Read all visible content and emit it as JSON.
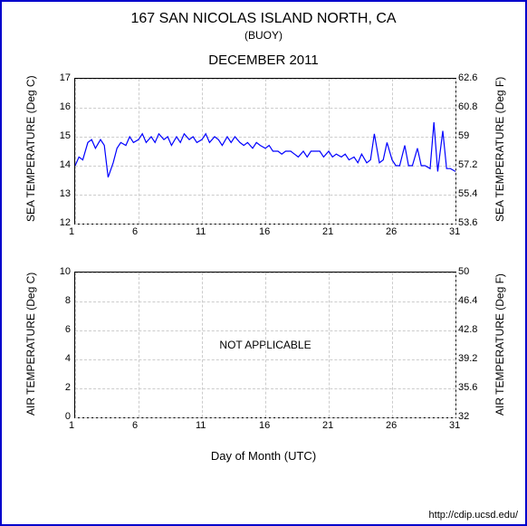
{
  "header": {
    "title": "167 SAN NICOLAS ISLAND NORTH, CA",
    "subtitle": "(BUOY)",
    "period": "DECEMBER 2011"
  },
  "layout": {
    "frame_border_color": "#0000cc",
    "background_color": "#ffffff",
    "grid_color": "#cccccc",
    "axis_color": "#000000"
  },
  "sea_chart": {
    "type": "line",
    "line_color": "#0000ff",
    "line_width": 1.2,
    "ylabel_left": "SEA TEMPERATURE (Deg C)",
    "ylabel_right": "SEA TEMPERATURE (Deg F)",
    "ylim_c": [
      12,
      17
    ],
    "yticks_c": [
      12,
      13,
      14,
      15,
      16,
      17
    ],
    "yticks_f": [
      53.6,
      55.4,
      57.2,
      59,
      60.8,
      62.6
    ],
    "xlim": [
      1,
      31
    ],
    "xticks": [
      1,
      6,
      11,
      16,
      21,
      26,
      31
    ],
    "series_x": [
      1,
      1.3,
      1.6,
      2,
      2.3,
      2.6,
      3,
      3.3,
      3.6,
      4,
      4.3,
      4.6,
      5,
      5.3,
      5.6,
      6,
      6.3,
      6.6,
      7,
      7.3,
      7.6,
      8,
      8.3,
      8.6,
      9,
      9.3,
      9.6,
      10,
      10.3,
      10.6,
      11,
      11.3,
      11.6,
      12,
      12.3,
      12.6,
      13,
      13.3,
      13.6,
      14,
      14.3,
      14.6,
      15,
      15.3,
      15.6,
      16,
      16.3,
      16.6,
      17,
      17.3,
      17.6,
      18,
      18.3,
      18.6,
      19,
      19.3,
      19.6,
      20,
      20.3,
      20.6,
      21,
      21.3,
      21.6,
      22,
      22.3,
      22.6,
      23,
      23.3,
      23.6,
      24,
      24.3,
      24.6,
      25,
      25.3,
      25.6,
      26,
      26.3,
      26.6,
      27,
      27.3,
      27.6,
      28,
      28.3,
      28.6,
      29,
      29.3,
      29.6,
      30,
      30.3,
      30.6,
      31
    ],
    "series_y": [
      14.0,
      14.3,
      14.2,
      14.8,
      14.9,
      14.6,
      14.9,
      14.7,
      13.6,
      14.1,
      14.6,
      14.8,
      14.7,
      15.0,
      14.8,
      14.9,
      15.1,
      14.8,
      15.0,
      14.8,
      15.1,
      14.9,
      15.0,
      14.7,
      15.0,
      14.8,
      15.1,
      14.9,
      15.0,
      14.8,
      14.9,
      15.1,
      14.8,
      15.0,
      14.9,
      14.7,
      15.0,
      14.8,
      15.0,
      14.8,
      14.7,
      14.8,
      14.6,
      14.8,
      14.7,
      14.6,
      14.7,
      14.5,
      14.5,
      14.4,
      14.5,
      14.5,
      14.4,
      14.3,
      14.5,
      14.3,
      14.5,
      14.5,
      14.5,
      14.3,
      14.5,
      14.3,
      14.4,
      14.3,
      14.4,
      14.2,
      14.3,
      14.1,
      14.4,
      14.1,
      14.2,
      15.1,
      14.1,
      14.2,
      14.8,
      14.2,
      14.0,
      14.0,
      14.7,
      14.0,
      14.0,
      14.6,
      14.0,
      14.0,
      13.9,
      15.5,
      13.8,
      15.2,
      13.9,
      13.9,
      13.8
    ]
  },
  "air_chart": {
    "type": "line",
    "ylabel_left": "AIR TEMPERATURE (Deg C)",
    "ylabel_right": "AIR TEMPERATURE (Deg F)",
    "ylim_c": [
      0,
      10
    ],
    "yticks_c": [
      0,
      2,
      4,
      6,
      8,
      10
    ],
    "yticks_f": [
      32,
      35.6,
      39.2,
      42.8,
      46.4,
      50
    ],
    "xlim": [
      1,
      31
    ],
    "xticks": [
      1,
      6,
      11,
      16,
      21,
      26,
      31
    ],
    "overlay": "NOT APPLICABLE"
  },
  "xlabel": "Day of Month (UTC)",
  "footer": "http://cdip.ucsd.edu/"
}
